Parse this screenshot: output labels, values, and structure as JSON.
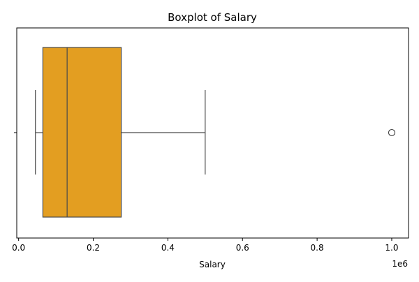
{
  "chart_data": {
    "type": "boxplot",
    "title": "Boxplot of Salary",
    "xlabel": "Salary",
    "ylabel": "",
    "axis_multiplier_label": "1e6",
    "x_scale": 1000000,
    "xlim": [
      -5000,
      1045000
    ],
    "x_ticks": [
      0,
      200000,
      400000,
      600000,
      800000,
      1000000
    ],
    "x_tick_labels": [
      "0.0",
      "0.2",
      "0.4",
      "0.6",
      "0.8",
      "1.0"
    ],
    "orientation": "horizontal",
    "grid": false,
    "legend": false,
    "box": {
      "whisker_low": 45000,
      "q1": 65000,
      "median": 130000,
      "q3": 275000,
      "whisker_high": 500000,
      "outliers": [
        1000000
      ]
    },
    "colors": {
      "box_fill": "#E39E21",
      "line": "#4A4A4A",
      "outlier_edge": "#3D3D3D",
      "axis": "#000000"
    }
  }
}
